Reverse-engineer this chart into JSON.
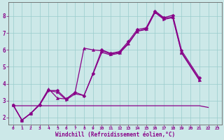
{
  "xlabel": "Windchill (Refroidissement éolien,°C)",
  "background_color": "#cce8e8",
  "grid_color": "#99cccc",
  "line_color": "#880088",
  "spine_color": "#666666",
  "xlim": [
    -0.5,
    23.5
  ],
  "ylim": [
    1.6,
    8.8
  ],
  "x_ticks": [
    0,
    1,
    2,
    3,
    4,
    5,
    6,
    7,
    8,
    9,
    10,
    11,
    12,
    13,
    14,
    15,
    16,
    17,
    18,
    19,
    20,
    21,
    22,
    23
  ],
  "y_ticks": [
    2,
    3,
    4,
    5,
    6,
    7,
    8
  ],
  "series": [
    {
      "x": [
        0,
        1,
        2,
        3,
        4,
        5,
        6,
        7,
        8,
        9,
        10,
        11,
        12,
        13,
        14,
        15,
        16,
        17,
        18,
        19,
        21
      ],
      "y": [
        2.75,
        1.85,
        2.25,
        2.75,
        3.6,
        3.6,
        3.1,
        3.5,
        3.3,
        4.6,
        6.0,
        5.8,
        5.9,
        6.5,
        7.2,
        7.3,
        8.3,
        7.9,
        8.05,
        5.95,
        4.35
      ],
      "marker": "D",
      "markersize": 2.5,
      "linewidth": 0.9
    },
    {
      "x": [
        0,
        1,
        2,
        3,
        4,
        5,
        6,
        7,
        8,
        9,
        10,
        11,
        12,
        13,
        14,
        15,
        16,
        17,
        18,
        19,
        21
      ],
      "y": [
        2.75,
        1.85,
        2.25,
        2.8,
        3.7,
        3.15,
        3.1,
        3.5,
        6.1,
        6.0,
        5.95,
        5.75,
        5.85,
        6.4,
        7.1,
        7.25,
        8.25,
        7.85,
        7.95,
        5.85,
        4.25
      ],
      "marker": "^",
      "markersize": 3.0,
      "linewidth": 0.9
    },
    {
      "x": [
        0,
        1,
        2,
        3,
        4,
        5,
        6,
        7,
        8,
        9,
        10,
        11,
        12,
        13,
        14,
        15,
        16,
        17,
        18,
        19,
        21
      ],
      "y": [
        2.75,
        1.85,
        2.25,
        2.75,
        3.6,
        3.5,
        3.05,
        3.4,
        3.3,
        4.55,
        5.85,
        5.7,
        5.8,
        6.35,
        7.1,
        7.2,
        8.2,
        7.8,
        7.9,
        5.8,
        4.2
      ],
      "marker": ">",
      "markersize": 2.5,
      "linewidth": 0.9
    },
    {
      "x": [
        0,
        1,
        2,
        3,
        4,
        5,
        6,
        7,
        8,
        9,
        10,
        11,
        12,
        13,
        14,
        15,
        16,
        17,
        18,
        19,
        20,
        21,
        22
      ],
      "y": [
        2.7,
        2.7,
        2.7,
        2.7,
        2.7,
        2.7,
        2.7,
        2.7,
        2.7,
        2.7,
        2.7,
        2.7,
        2.7,
        2.7,
        2.7,
        2.7,
        2.7,
        2.7,
        2.7,
        2.7,
        2.7,
        2.7,
        2.6
      ],
      "marker": null,
      "markersize": 0,
      "linewidth": 0.9
    }
  ]
}
